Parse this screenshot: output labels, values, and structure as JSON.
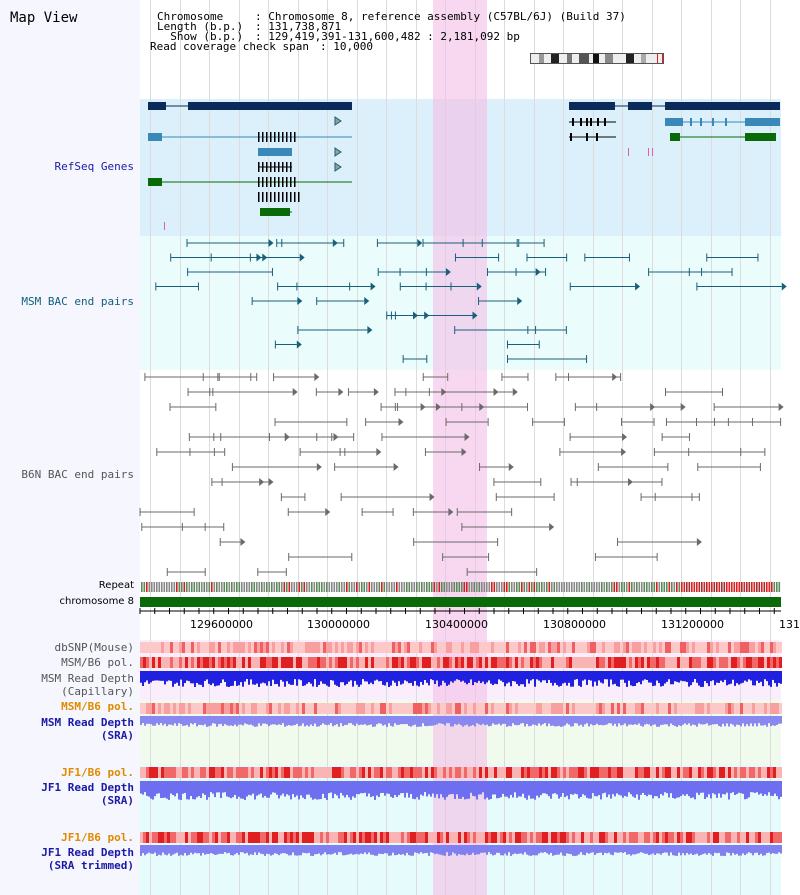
{
  "header": {
    "view_title": "Map View",
    "chromosome_key": "Chromosome    ",
    "chromosome_value": ": Chromosome 8, reference assembly (C57BL/6J) (Build 37)",
    "length_key": "Length (b.p.)",
    "length_value": ": 131,738,871",
    "show_key": "  Show (b.p.)",
    "show_value": ": 129,419,391-131,600,482 : 2,181,092 bp",
    "coverage_key": "Read coverage check span",
    "coverage_value": ": 10,000"
  },
  "tracks": {
    "refseq": "RefSeq Genes",
    "msm_bac": "MSM BAC end pairs",
    "b6n_bac": "B6N BAC end pairs",
    "repeat": "Repeat",
    "chromosome": "chromosome 8",
    "dbsnp": "dbSNP(Mouse)",
    "msm_b6_pol": "MSM/B6 pol.",
    "msm_read_cap_1": "MSM Read Depth",
    "msm_read_cap_2": "(Capillary)",
    "msm_b6_pol_2": "MSM/B6 pol.",
    "msm_read_sra_1": "MSM Read Depth",
    "msm_read_sra_2": "(SRA)",
    "jf1_b6_pol": "JF1/B6 pol.",
    "jf1_read_sra_1": "JF1 Read Depth",
    "jf1_read_sra_2": "(SRA)",
    "jf1_b6_pol_2": "JF1/B6 pol.",
    "jf1_read_trim_1": "JF1 Read Depth",
    "jf1_read_trim_2": "(SRA trimmed)"
  },
  "axis": {
    "ticks": [
      "129600000",
      "130000000",
      "130400000",
      "130800000",
      "131200000",
      "131"
    ]
  },
  "colors": {
    "label_blue": "#1a1aa6",
    "label_teal": "#0f5f7a",
    "label_grey": "#555555",
    "label_orange": "#e08a00",
    "gene_dark": "#0a2a5a",
    "gene_mid": "#3a88b8",
    "gene_green": "#0a6a0a",
    "highlight": "#f8d8f0"
  }
}
